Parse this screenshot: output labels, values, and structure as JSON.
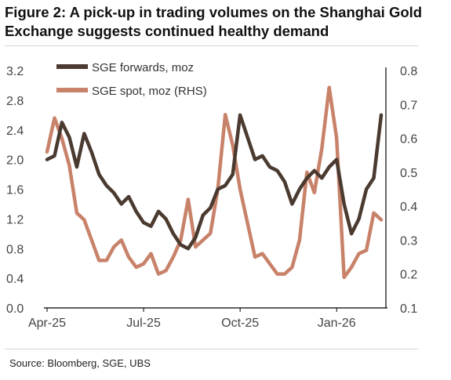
{
  "figure": {
    "title": "Figure 2: A pick-up in trading volumes on the Shanghai Gold Exchange suggests continued healthy demand",
    "source": "Source: Bloomberg, SGE, UBS"
  },
  "colors": {
    "forwards": "#4a3a30",
    "spot": "#c8826a",
    "axis": "#000000"
  },
  "chart_data": {
    "type": "line",
    "x_ticks": [
      "Apr-25",
      "Jul-25",
      "Oct-25",
      "Jan-26"
    ],
    "x_tick_index": [
      0,
      13,
      26,
      39
    ],
    "y_left": {
      "ticks": [
        "0.0",
        "0.4",
        "0.8",
        "1.2",
        "1.6",
        "2.0",
        "2.4",
        "2.8",
        "3.2"
      ],
      "ylim": [
        0,
        3.2
      ]
    },
    "y_right": {
      "ticks": [
        "0.1",
        "0.2",
        "0.3",
        "0.4",
        "0.5",
        "0.6",
        "0.7",
        "0.8"
      ],
      "ylim": [
        0.1,
        0.8
      ]
    },
    "legend_position": "top-left",
    "series": [
      {
        "name": "SGE forwards, moz",
        "axis": "left",
        "values": [
          2.0,
          2.05,
          2.5,
          2.3,
          1.9,
          2.35,
          2.1,
          1.8,
          1.65,
          1.55,
          1.4,
          1.5,
          1.3,
          1.15,
          1.1,
          1.3,
          1.2,
          1.0,
          0.85,
          0.8,
          0.95,
          1.25,
          1.35,
          1.6,
          1.65,
          1.8,
          2.6,
          2.3,
          2.0,
          2.05,
          1.9,
          1.85,
          1.7,
          1.4,
          1.6,
          1.75,
          1.85,
          1.75,
          1.9,
          2.0,
          1.4,
          1.0,
          1.2,
          1.6,
          1.75,
          2.6
        ]
      },
      {
        "name": "SGE spot, moz (RHS)",
        "axis": "right",
        "values": [
          0.56,
          0.66,
          0.6,
          0.52,
          0.38,
          0.36,
          0.3,
          0.24,
          0.24,
          0.28,
          0.3,
          0.25,
          0.22,
          0.23,
          0.26,
          0.2,
          0.21,
          0.25,
          0.3,
          0.42,
          0.28,
          0.3,
          0.32,
          0.45,
          0.67,
          0.58,
          0.45,
          0.35,
          0.25,
          0.26,
          0.23,
          0.2,
          0.2,
          0.22,
          0.3,
          0.5,
          0.44,
          0.57,
          0.75,
          0.6,
          0.19,
          0.22,
          0.26,
          0.27,
          0.38,
          0.36
        ]
      }
    ]
  }
}
